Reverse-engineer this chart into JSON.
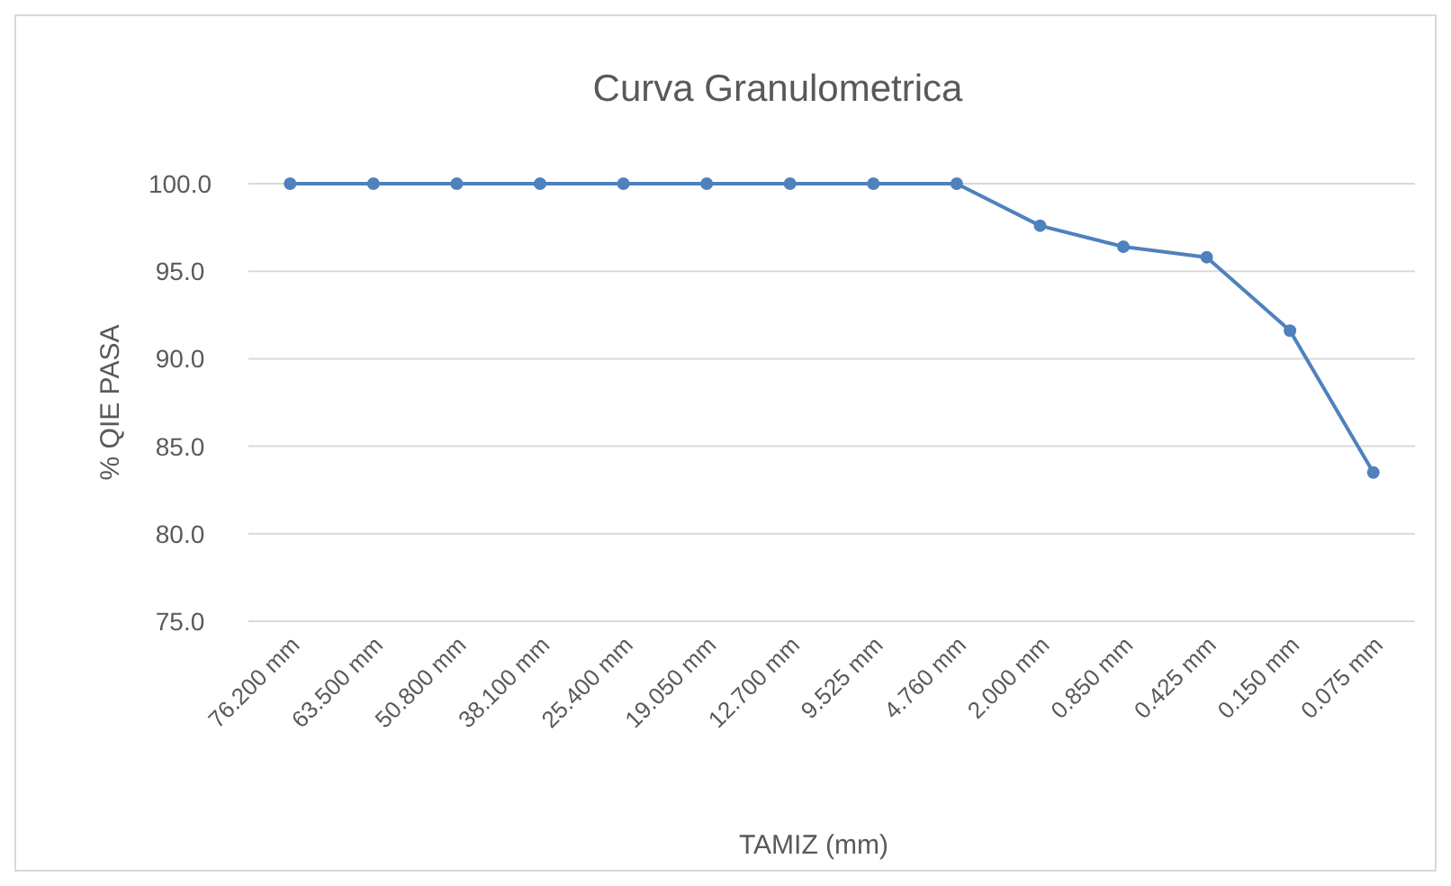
{
  "chart_data": {
    "type": "line",
    "title": "Curva Granulometrica",
    "xlabel": "TAMIZ (mm)",
    "ylabel": "% QIE PASA",
    "categories": [
      "76.200 mm",
      "63.500 mm",
      "50.800 mm",
      "38.100 mm",
      "25.400 mm",
      "19.050 mm",
      "12.700 mm",
      "9.525 mm",
      "4.760 mm",
      "2.000 mm",
      "0.850 mm",
      "0.425 mm",
      "0.150 mm",
      "0.075 mm"
    ],
    "series": [
      {
        "color": "#4f81bd",
        "values": [
          100,
          100,
          100,
          100,
          100,
          100,
          100,
          100,
          100,
          97.6,
          96.4,
          95.8,
          91.6,
          83.5
        ]
      }
    ],
    "ylim": [
      75,
      100
    ],
    "yticks": [
      {
        "value": 75,
        "label": "75.0"
      },
      {
        "value": 80,
        "label": "80.0"
      },
      {
        "value": 85,
        "label": "85.0"
      },
      {
        "value": 90,
        "label": "90.0"
      },
      {
        "value": 95,
        "label": "95.0"
      },
      {
        "value": 100,
        "label": "100.0"
      }
    ],
    "grid": "y",
    "marker": "circle",
    "line_style": "solid"
  }
}
